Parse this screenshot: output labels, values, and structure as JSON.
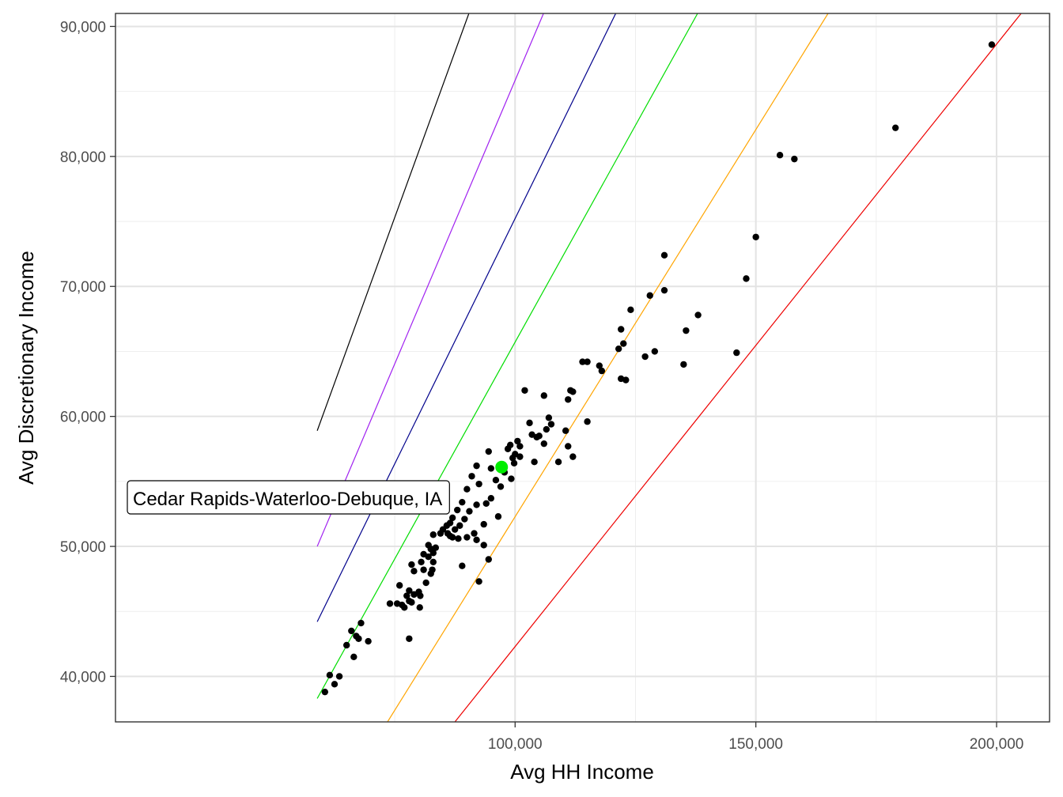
{
  "chart_data": {
    "type": "scatter",
    "title": "",
    "xlabel": "Avg HH Income",
    "ylabel": "Avg Discretionary Income",
    "xlim": [
      17000,
      211000
    ],
    "ylim": [
      36500,
      91000
    ],
    "x_ticks": [
      100000,
      150000,
      200000
    ],
    "x_tick_labels": [
      "100,000",
      "150,000",
      "200,000"
    ],
    "x_minor_ticks": [
      75000,
      125000,
      175000
    ],
    "y_ticks": [
      40000,
      50000,
      60000,
      70000,
      80000,
      90000
    ],
    "y_tick_labels": [
      "40,000",
      "50,000",
      "60,000",
      "70,000",
      "80,000",
      "90,000"
    ],
    "y_minor_ticks": [
      45000,
      55000,
      65000,
      75000,
      85000
    ],
    "grid": true,
    "point_color": "#000000",
    "reference_lines": [
      {
        "color": "#000000",
        "points": [
          [
            58900,
            58900
          ],
          [
            90400,
            91000
          ]
        ]
      },
      {
        "color": "#a020f0",
        "points": [
          [
            58900,
            50000
          ],
          [
            105900,
            91000
          ]
        ]
      },
      {
        "color": "#00008b",
        "points": [
          [
            58900,
            44200
          ],
          [
            120900,
            91000
          ]
        ]
      },
      {
        "color": "#00dd00",
        "points": [
          [
            58900,
            38300
          ],
          [
            137900,
            91000
          ]
        ]
      },
      {
        "color": "#ffa500",
        "points": [
          [
            73500,
            36500
          ],
          [
            165000,
            91000
          ]
        ]
      },
      {
        "color": "#ee0000",
        "points": [
          [
            87500,
            36500
          ],
          [
            205100,
            91000
          ]
        ]
      }
    ],
    "highlight": {
      "label": "Cedar Rapids-Waterloo-Debuque, IA",
      "x": 97200,
      "y": 56100,
      "color": "#00ee00"
    },
    "points": [
      [
        199000,
        88600
      ],
      [
        179000,
        82200
      ],
      [
        155000,
        80100
      ],
      [
        158000,
        79800
      ],
      [
        150000,
        73800
      ],
      [
        131000,
        72400
      ],
      [
        148000,
        70600
      ],
      [
        131000,
        69700
      ],
      [
        128000,
        69300
      ],
      [
        124000,
        68200
      ],
      [
        138000,
        67800
      ],
      [
        122000,
        66700
      ],
      [
        135500,
        66600
      ],
      [
        122500,
        65600
      ],
      [
        121500,
        65200
      ],
      [
        129000,
        65000
      ],
      [
        146000,
        64900
      ],
      [
        127000,
        64600
      ],
      [
        114000,
        64200
      ],
      [
        115000,
        64200
      ],
      [
        135000,
        64000
      ],
      [
        117500,
        63900
      ],
      [
        118000,
        63500
      ],
      [
        122000,
        62900
      ],
      [
        123000,
        62800
      ],
      [
        102000,
        62000
      ],
      [
        111500,
        62000
      ],
      [
        112000,
        61900
      ],
      [
        106000,
        61600
      ],
      [
        111000,
        61300
      ],
      [
        107000,
        59900
      ],
      [
        115000,
        59600
      ],
      [
        107500,
        59400
      ],
      [
        103000,
        59500
      ],
      [
        106500,
        59000
      ],
      [
        110500,
        58900
      ],
      [
        103500,
        58600
      ],
      [
        104500,
        58400
      ],
      [
        105000,
        58500
      ],
      [
        100500,
        58100
      ],
      [
        101000,
        57700
      ],
      [
        99000,
        57800
      ],
      [
        98500,
        57500
      ],
      [
        106000,
        57900
      ],
      [
        111000,
        57700
      ],
      [
        100000,
        57100
      ],
      [
        99500,
        56800
      ],
      [
        101000,
        56900
      ],
      [
        99800,
        56400
      ],
      [
        94500,
        57300
      ],
      [
        112000,
        56900
      ],
      [
        104000,
        56500
      ],
      [
        109000,
        56500
      ],
      [
        92000,
        56200
      ],
      [
        95000,
        56000
      ],
      [
        97800,
        55700
      ],
      [
        99200,
        55200
      ],
      [
        91000,
        55400
      ],
      [
        96000,
        55100
      ],
      [
        92500,
        54800
      ],
      [
        97000,
        54600
      ],
      [
        90000,
        54400
      ],
      [
        95000,
        53700
      ],
      [
        89000,
        53400
      ],
      [
        92000,
        53200
      ],
      [
        94000,
        53300
      ],
      [
        88000,
        52800
      ],
      [
        90500,
        52700
      ],
      [
        96500,
        52300
      ],
      [
        87000,
        52200
      ],
      [
        89500,
        52100
      ],
      [
        93500,
        51700
      ],
      [
        86500,
        51800
      ],
      [
        85800,
        51600
      ],
      [
        88500,
        51600
      ],
      [
        85000,
        51300
      ],
      [
        86000,
        51000
      ],
      [
        87500,
        51300
      ],
      [
        91500,
        51000
      ],
      [
        84500,
        51000
      ],
      [
        83000,
        50900
      ],
      [
        86500,
        50800
      ],
      [
        87000,
        50700
      ],
      [
        90000,
        50700
      ],
      [
        82000,
        50100
      ],
      [
        92000,
        50500
      ],
      [
        88200,
        50600
      ],
      [
        93500,
        50100
      ],
      [
        82500,
        49800
      ],
      [
        83500,
        49900
      ],
      [
        83000,
        49500
      ],
      [
        81000,
        49400
      ],
      [
        82000,
        49200
      ],
      [
        80500,
        48800
      ],
      [
        78500,
        48600
      ],
      [
        83000,
        48800
      ],
      [
        89000,
        48500
      ],
      [
        82800,
        48200
      ],
      [
        81000,
        48200
      ],
      [
        79000,
        48100
      ],
      [
        94500,
        49000
      ],
      [
        82500,
        47900
      ],
      [
        81500,
        47200
      ],
      [
        92500,
        47300
      ],
      [
        76000,
        47000
      ],
      [
        78000,
        46600
      ],
      [
        79000,
        46300
      ],
      [
        80000,
        46500
      ],
      [
        80300,
        46200
      ],
      [
        77500,
        46200
      ],
      [
        78000,
        45800
      ],
      [
        75500,
        45600
      ],
      [
        76500,
        45500
      ],
      [
        74000,
        45600
      ],
      [
        78500,
        45700
      ],
      [
        77000,
        45300
      ],
      [
        80200,
        45300
      ],
      [
        68000,
        44100
      ],
      [
        66000,
        43500
      ],
      [
        67000,
        43100
      ],
      [
        67500,
        42900
      ],
      [
        65000,
        42400
      ],
      [
        78000,
        42900
      ],
      [
        69500,
        42700
      ],
      [
        66500,
        41500
      ],
      [
        61500,
        40100
      ],
      [
        63500,
        40000
      ],
      [
        62500,
        39400
      ],
      [
        60500,
        38800
      ]
    ]
  }
}
